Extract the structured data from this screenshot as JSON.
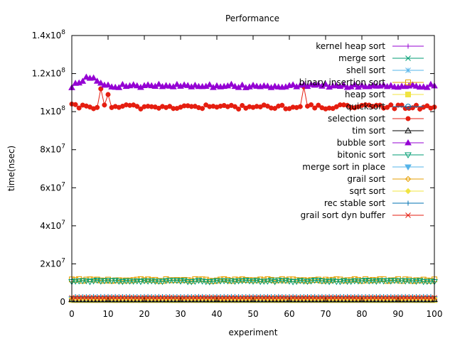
{
  "chart_data": {
    "type": "line",
    "title": "Performance",
    "xlabel": "experiment",
    "ylabel": "time(nsec)",
    "xlim": [
      0,
      100
    ],
    "ylim": [
      0,
      140000000
    ],
    "x_ticks": [
      {
        "value": 0,
        "label": "0"
      },
      {
        "value": 10,
        "label": "10"
      },
      {
        "value": 20,
        "label": "20"
      },
      {
        "value": 30,
        "label": "30"
      },
      {
        "value": 40,
        "label": "40"
      },
      {
        "value": 50,
        "label": "50"
      },
      {
        "value": 60,
        "label": "60"
      },
      {
        "value": 70,
        "label": "70"
      },
      {
        "value": 80,
        "label": "80"
      },
      {
        "value": 90,
        "label": "90"
      },
      {
        "value": 100,
        "label": "100"
      }
    ],
    "y_ticks": [
      {
        "value": 0,
        "label": "0",
        "mantissa": "0",
        "exp": ""
      },
      {
        "value": 20000000,
        "label": "2x10^7",
        "mantissa": "2x10",
        "exp": "7"
      },
      {
        "value": 40000000,
        "label": "4x10^7",
        "mantissa": "4x10",
        "exp": "7"
      },
      {
        "value": 60000000,
        "label": "6x10^7",
        "mantissa": "6x10",
        "exp": "7"
      },
      {
        "value": 80000000,
        "label": "8x10^7",
        "mantissa": "8x10",
        "exp": "7"
      },
      {
        "value": 100000000,
        "label": "1x10^8",
        "mantissa": "1x10",
        "exp": "8"
      },
      {
        "value": 120000000,
        "label": "1.2x10^8",
        "mantissa": "1.2x10",
        "exp": "8"
      },
      {
        "value": 140000000,
        "label": "1.4x10^8",
        "mantissa": "1.4x10",
        "exp": "8"
      }
    ],
    "grid": false,
    "legend_position": "top-right",
    "series": [
      {
        "name": "kernel heap sort",
        "color": "#9400d3",
        "marker": "plus",
        "base": 800000,
        "noise": 50000
      },
      {
        "name": "merge sort",
        "color": "#009e73",
        "marker": "cross",
        "base": 1000000,
        "noise": 50000
      },
      {
        "name": "shell sort",
        "color": "#56b4e9",
        "marker": "star",
        "base": 1200000,
        "noise": 50000
      },
      {
        "name": "binary insertion sort",
        "color": "#e69f00",
        "marker": "open-square",
        "base": 11500000,
        "noise": 500000
      },
      {
        "name": "heap sort",
        "color": "#f0e442",
        "marker": "filled-square",
        "base": 1000000,
        "noise": 50000
      },
      {
        "name": "quicksort",
        "color": "#0072b2",
        "marker": "open-circle",
        "base": 1400000,
        "noise": 50000
      },
      {
        "name": "selection sort",
        "color": "#e51e10",
        "marker": "filled-circle",
        "base": 102500000,
        "noise": 1200000
      },
      {
        "name": "tim sort",
        "color": "#000000",
        "marker": "open-triangle",
        "base": 1200000,
        "noise": 50000
      },
      {
        "name": "bubble sort",
        "color": "#9400d3",
        "marker": "filled-triangle",
        "base": 113500000,
        "noise": 900000
      },
      {
        "name": "bitonic sort",
        "color": "#009e73",
        "marker": "open-inv-triangle",
        "base": 11000000,
        "noise": 400000
      },
      {
        "name": "merge sort in place",
        "color": "#56b4e9",
        "marker": "filled-inv-triangle",
        "base": 1600000,
        "noise": 50000
      },
      {
        "name": "grail sort",
        "color": "#e69f00",
        "marker": "open-diamond",
        "base": 1800000,
        "noise": 50000
      },
      {
        "name": "sqrt sort",
        "color": "#f0e442",
        "marker": "filled-diamond",
        "base": 2000000,
        "noise": 50000
      },
      {
        "name": "rec stable sort",
        "color": "#0072b2",
        "marker": "plus",
        "base": 2800000,
        "noise": 50000
      },
      {
        "name": "grail sort dyn buffer",
        "color": "#e51e10",
        "marker": "cross",
        "base": 2200000,
        "noise": 50000
      }
    ]
  }
}
